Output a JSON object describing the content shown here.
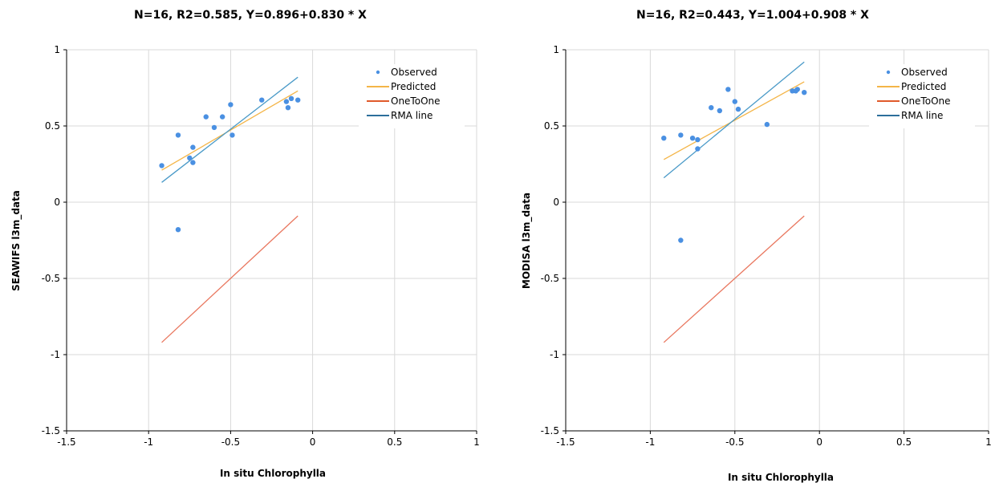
{
  "colors": {
    "observed": "#4a90e2",
    "predicted": "#f4b548",
    "one_to_one": "#e9775f",
    "rma": "#4a9ac8",
    "grid": "#d9d9d9",
    "axis": "#000000",
    "legend_line_one_to_one": "#e05a2b",
    "legend_line_rma": "#2c6f9b"
  },
  "chart_data": [
    {
      "type": "scatter",
      "title": "N=16, R2=0.585, Y=0.896+0.830 * X",
      "xlabel": "In situ  Chlorophylla",
      "ylabel": "SEAWIFS l3m_data",
      "xlim": [
        -1.5,
        1
      ],
      "ylim": [
        -1.5,
        1
      ],
      "x_ticks": [
        "-1.5",
        "-1",
        "-0.5",
        "0",
        "0.5",
        "1"
      ],
      "y_ticks": [
        "-1.5",
        "-1",
        "-0.5",
        "0",
        "0.5",
        "1"
      ],
      "grid": true,
      "legend_position": "top-right",
      "series": [
        {
          "name": "Observed",
          "kind": "points",
          "x": [
            -0.92,
            -0.82,
            -0.82,
            -0.75,
            -0.73,
            -0.73,
            -0.65,
            -0.6,
            -0.55,
            -0.5,
            -0.49,
            -0.31,
            -0.16,
            -0.15,
            -0.13,
            -0.09
          ],
          "y": [
            0.24,
            0.44,
            -0.18,
            0.29,
            0.36,
            0.26,
            0.56,
            0.49,
            0.56,
            0.64,
            0.44,
            0.67,
            0.66,
            0.62,
            0.68,
            0.67
          ]
        },
        {
          "name": "Predicted",
          "kind": "line",
          "x": [
            -0.92,
            -0.09
          ],
          "y": [
            0.21,
            0.73
          ]
        },
        {
          "name": "OneToOne",
          "kind": "line",
          "x": [
            -0.92,
            -0.09
          ],
          "y": [
            -0.92,
            -0.09
          ]
        },
        {
          "name": "RMA line",
          "kind": "line",
          "x": [
            -0.92,
            -0.09
          ],
          "y": [
            0.13,
            0.82
          ]
        }
      ]
    },
    {
      "type": "scatter",
      "title": "N=16, R2=0.443, Y=1.004+0.908 * X",
      "xlabel": "In situ  Chlorophylla",
      "ylabel": "MODISA l3m_data",
      "xlim": [
        -1.5,
        1
      ],
      "ylim": [
        -1.5,
        1
      ],
      "x_ticks": [
        "-1.5",
        "-1",
        "-0.5",
        "0",
        "0.5",
        "1"
      ],
      "y_ticks": [
        "-1.5",
        "-1",
        "-0.5",
        "0",
        "0.5",
        "1"
      ],
      "grid": true,
      "legend_position": "top-right",
      "series": [
        {
          "name": "Observed",
          "kind": "points",
          "x": [
            -0.92,
            -0.82,
            -0.82,
            -0.75,
            -0.72,
            -0.72,
            -0.64,
            -0.59,
            -0.54,
            -0.5,
            -0.48,
            -0.31,
            -0.16,
            -0.14,
            -0.13,
            -0.09
          ],
          "y": [
            0.42,
            0.44,
            -0.25,
            0.42,
            0.41,
            0.35,
            0.62,
            0.6,
            0.74,
            0.66,
            0.61,
            0.51,
            0.73,
            0.73,
            0.74,
            0.72
          ]
        },
        {
          "name": "Predicted",
          "kind": "line",
          "x": [
            -0.92,
            -0.09
          ],
          "y": [
            0.28,
            0.79
          ]
        },
        {
          "name": "OneToOne",
          "kind": "line",
          "x": [
            -0.92,
            -0.09
          ],
          "y": [
            -0.92,
            -0.09
          ]
        },
        {
          "name": "RMA line",
          "kind": "line",
          "x": [
            -0.92,
            -0.09
          ],
          "y": [
            0.16,
            0.92
          ]
        }
      ]
    }
  ]
}
